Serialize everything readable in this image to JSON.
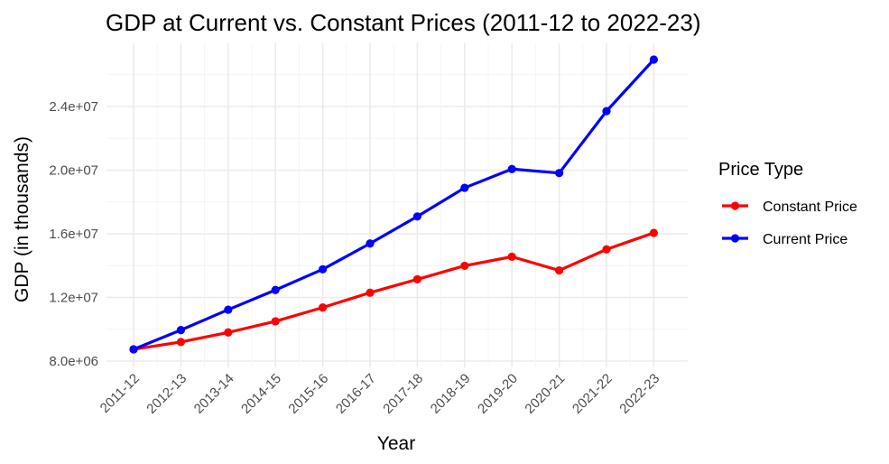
{
  "chart_data": {
    "type": "line",
    "title": "GDP at Current vs. Constant Prices (2011-12 to 2022-23)",
    "xlabel": "Year",
    "ylabel": "GDP (in thousands)",
    "categories": [
      "2011-12",
      "2012-13",
      "2013-14",
      "2014-15",
      "2015-16",
      "2016-17",
      "2017-18",
      "2018-19",
      "2019-20",
      "2020-21",
      "2021-22",
      "2022-23"
    ],
    "yticks": [
      8000000,
      12000000,
      16000000,
      20000000,
      24000000
    ],
    "ytick_labels": [
      "8.0e+06",
      "1.2e+07",
      "1.6e+07",
      "2.0e+07",
      "2.4e+07"
    ],
    "ylim": [
      7500000,
      27800000
    ],
    "grid": true,
    "legend_position": "right",
    "legend_title": "Price Type",
    "series": [
      {
        "name": "Constant Price",
        "color": "#ff0000",
        "values": [
          8740000,
          9200000,
          9800000,
          10500000,
          11370000,
          12300000,
          13140000,
          13990000,
          14560000,
          13700000,
          15020000,
          16060000
        ]
      },
      {
        "name": "Current Price",
        "color": "#0000ff",
        "values": [
          8740000,
          9950000,
          11230000,
          12470000,
          13770000,
          15390000,
          17090000,
          18890000,
          20070000,
          19820000,
          23710000,
          26950000
        ]
      }
    ]
  }
}
